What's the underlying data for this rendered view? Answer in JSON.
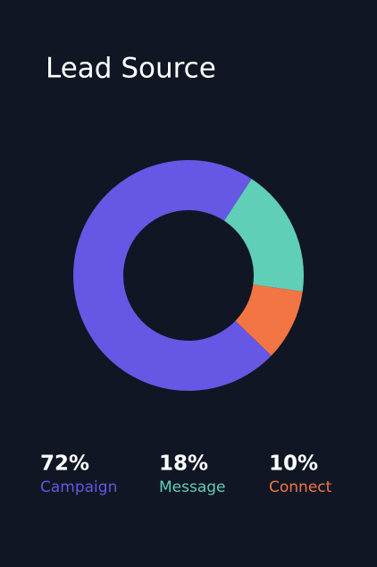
{
  "chart_data": {
    "type": "pie",
    "title": "Lead Source",
    "categories": [
      "Campaign",
      "Message",
      "Connect"
    ],
    "values": [
      72,
      18,
      10
    ],
    "value_labels": [
      "72%",
      "18%",
      "10%"
    ],
    "colors": [
      "#6657e4",
      "#5fcfb8",
      "#f47544"
    ]
  }
}
